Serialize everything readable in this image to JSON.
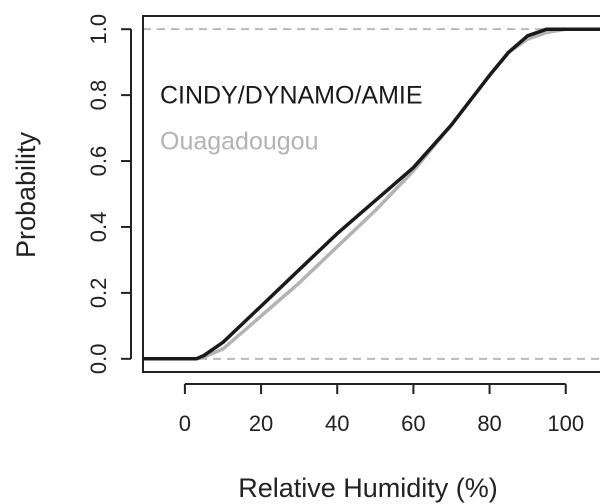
{
  "chart_data": {
    "type": "line",
    "x_label": "Relative Humidity (%)",
    "y_label": "Probability",
    "x": [
      -11,
      3,
      5,
      10,
      20,
      30,
      40,
      50,
      60,
      70,
      80,
      85,
      90,
      95,
      100,
      109
    ],
    "series": [
      {
        "name": "CINDY/DYNAMO/AMIE",
        "color": "#1a1a1a",
        "values": [
          0,
          0,
          0.01,
          0.05,
          0.16,
          0.27,
          0.38,
          0.48,
          0.58,
          0.71,
          0.86,
          0.93,
          0.98,
          1.0,
          1.0,
          1.0
        ]
      },
      {
        "name": "Ouagadougou",
        "color": "#b3b3b3",
        "values": [
          0,
          0,
          0.005,
          0.03,
          0.13,
          0.23,
          0.34,
          0.45,
          0.57,
          0.71,
          0.86,
          0.93,
          0.97,
          0.99,
          1.0,
          1.0
        ]
      }
    ],
    "hlines": [
      0,
      1
    ],
    "xlim": [
      -11,
      109
    ],
    "ylim": [
      -0.04,
      1.04
    ],
    "xticks": [
      0,
      20,
      40,
      60,
      80,
      100
    ],
    "yticks": [
      {
        "value": 0,
        "label": "0.0"
      },
      0.2,
      0.4,
      0.6,
      0.8,
      {
        "value": 1,
        "label": "1.0"
      }
    ]
  }
}
